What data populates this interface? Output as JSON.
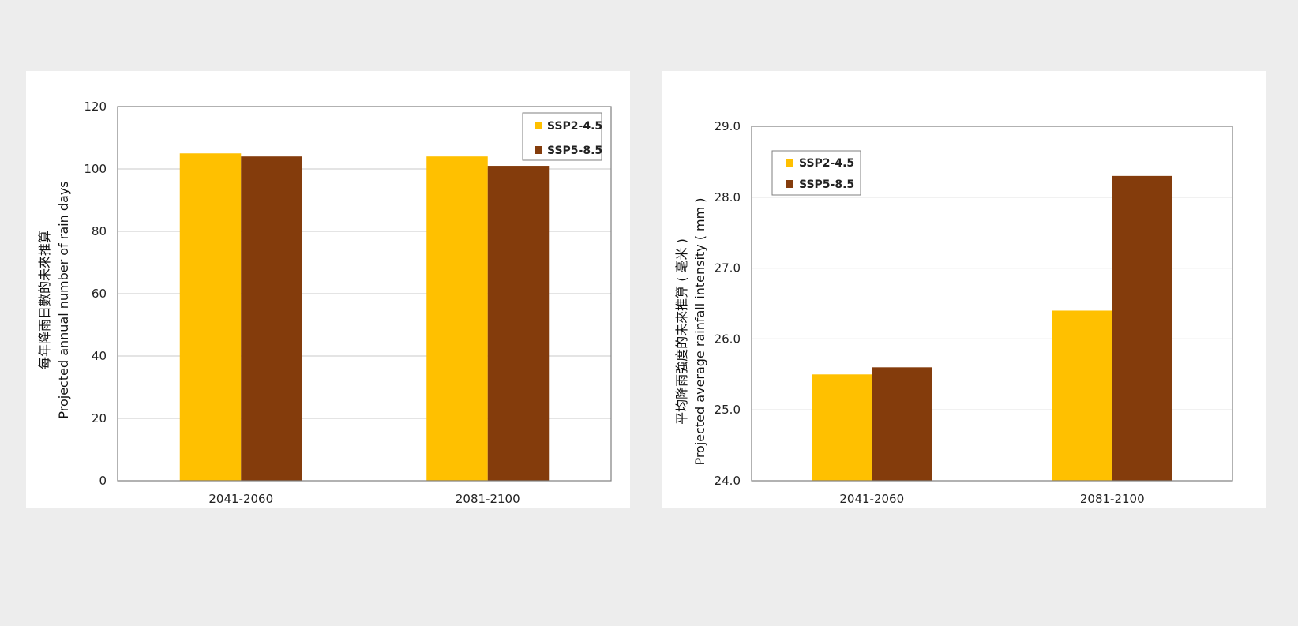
{
  "colors": {
    "ssp245": "#FFC000",
    "ssp585": "#843C0C",
    "grid": "#c8c8c8",
    "axis": "#7f7f7f"
  },
  "chart_data": [
    {
      "type": "bar",
      "categories": [
        "2041-2060",
        "2081-2100"
      ],
      "series": [
        {
          "name": "SSP2-4.5",
          "values": [
            105,
            104
          ]
        },
        {
          "name": "SSP5-8.5",
          "values": [
            104,
            101
          ]
        }
      ],
      "ylabel_zh": "每年降雨日數的未來推算",
      "ylabel_en": "Projected annual number of rain days",
      "ylim": [
        0,
        120
      ],
      "yticks": [
        "0",
        "20",
        "40",
        "60",
        "80",
        "100",
        "120"
      ],
      "grid": true,
      "legend_position": "top-right"
    },
    {
      "type": "bar",
      "categories": [
        "2041-2060",
        "2081-2100"
      ],
      "series": [
        {
          "name": "SSP2-4.5",
          "values": [
            25.5,
            26.4
          ]
        },
        {
          "name": "SSP5-8.5",
          "values": [
            25.6,
            28.3
          ]
        }
      ],
      "ylabel_zh": "平均降雨強度的未來推算 ( 毫米 )",
      "ylabel_en": "Projected average rainfall intensity ( mm )",
      "ylim": [
        24.0,
        29.0
      ],
      "yticks": [
        "24.0",
        "25.0",
        "26.0",
        "27.0",
        "28.0",
        "29.0"
      ],
      "grid": true,
      "legend_position": "top-left"
    }
  ]
}
